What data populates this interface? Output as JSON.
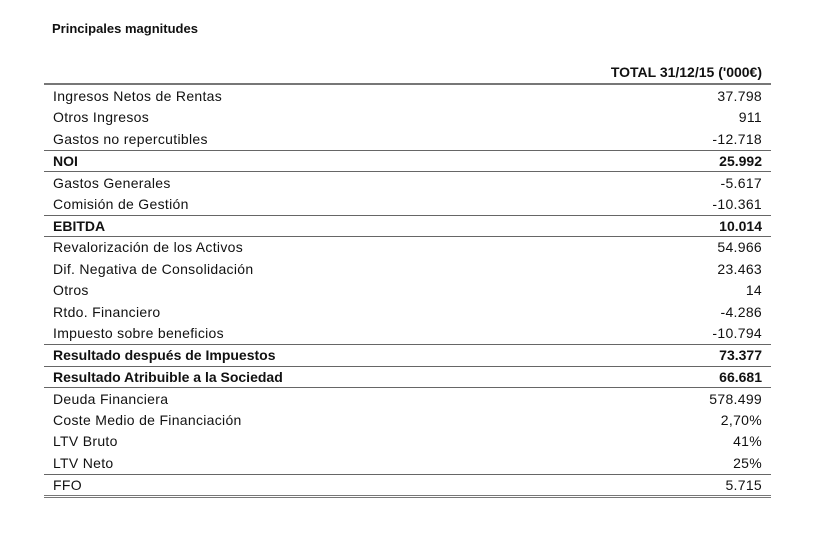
{
  "title": "Principales magnitudes",
  "column_header": "TOTAL 31/12/15 ('000€)",
  "rows": [
    {
      "label": "Ingresos Netos de Rentas",
      "value": "37.798",
      "bold": false,
      "sep": false
    },
    {
      "label": "Otros Ingresos",
      "value": "911",
      "bold": false,
      "sep": false
    },
    {
      "label": "Gastos no repercutibles",
      "value": "-12.718",
      "bold": false,
      "sep": false
    },
    {
      "label": "NOI",
      "value": "25.992",
      "bold": true,
      "sep": true
    },
    {
      "label": "Gastos Generales",
      "value": "-5.617",
      "bold": false,
      "sep": true
    },
    {
      "label": "Comisión de Gestión",
      "value": "-10.361",
      "bold": false,
      "sep": false
    },
    {
      "label": "EBITDA",
      "value": "10.014",
      "bold": true,
      "sep": true
    },
    {
      "label": "Revalorización de los Activos",
      "value": "54.966",
      "bold": false,
      "sep": true
    },
    {
      "label": "Dif. Negativa de Consolidación",
      "value": "23.463",
      "bold": false,
      "sep": false
    },
    {
      "label": "Otros",
      "value": "14",
      "bold": false,
      "sep": false
    },
    {
      "label": "Rtdo. Financiero",
      "value": "-4.286",
      "bold": false,
      "sep": false
    },
    {
      "label": "Impuesto sobre beneficios",
      "value": "-10.794",
      "bold": false,
      "sep": false
    },
    {
      "label": "Resultado después de Impuestos",
      "value": "73.377",
      "bold": true,
      "sep": true
    },
    {
      "label": "Resultado Atribuible a la Sociedad",
      "value": "66.681",
      "bold": true,
      "sep": true
    },
    {
      "label": "Deuda Financiera",
      "value": "578.499",
      "bold": false,
      "sep": true
    },
    {
      "label": "Coste Medio de Financiación",
      "value": "2,70%",
      "bold": false,
      "sep": false
    },
    {
      "label": "LTV Bruto",
      "value": "41%",
      "bold": false,
      "sep": false
    },
    {
      "label": "LTV Neto",
      "value": "25%",
      "bold": false,
      "sep": false
    },
    {
      "label": "FFO",
      "value": "5.715",
      "bold": false,
      "sep": true
    }
  ]
}
